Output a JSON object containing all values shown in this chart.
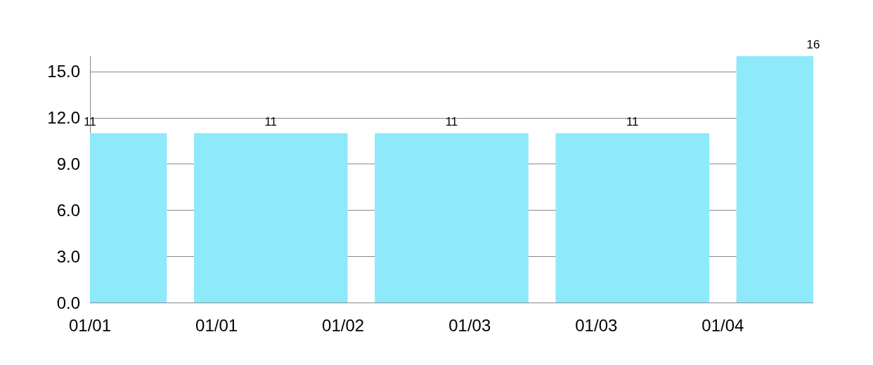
{
  "chart_data": {
    "type": "bar",
    "x": [
      "--01-01",
      "--01-02",
      "--01-03",
      "--01-04",
      "--01-05"
    ],
    "values": [
      11,
      11,
      11,
      11,
      16
    ],
    "color": "#8ee9fb",
    "xlim": [
      "--01-01",
      "--01-05"
    ],
    "xticks": [
      {
        "value": "--01-01",
        "label": "01/01"
      },
      {
        "value": "--01-01T16:48",
        "label": "01/01"
      },
      {
        "value": "--01-02T09:36",
        "label": "01/02"
      },
      {
        "value": "--01-03T02:24",
        "label": "01/03"
      },
      {
        "value": "--01-03T19:12",
        "label": "01/03"
      },
      {
        "value": "--01-04T12:00",
        "label": "01/04"
      }
    ],
    "ylim": [
      0,
      16
    ],
    "yticks": [
      {
        "value": 0,
        "label": "0.0"
      },
      {
        "value": 3,
        "label": "3.0"
      },
      {
        "value": 6,
        "label": "6.0"
      },
      {
        "value": 9,
        "label": "9.0"
      },
      {
        "value": 12,
        "label": "12.0"
      },
      {
        "value": 15,
        "label": "15.0"
      }
    ],
    "grid": "y",
    "data_labels": true
  }
}
